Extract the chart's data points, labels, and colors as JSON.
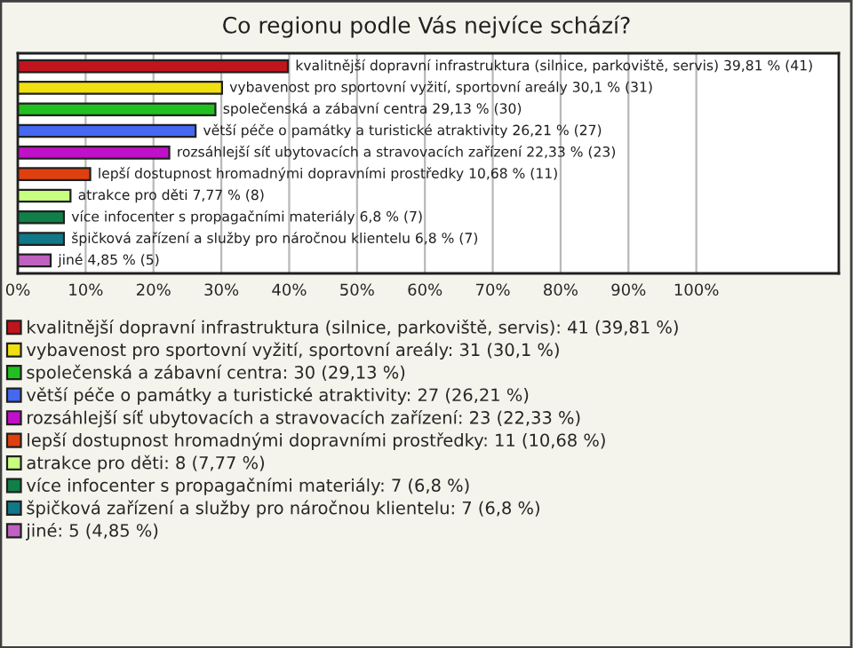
{
  "chart_data": {
    "type": "bar",
    "orientation": "horizontal",
    "title": "Co regionu podle Vás nejvíce schází?",
    "categories": [
      null,
      null,
      null,
      null,
      null,
      null,
      null,
      null,
      null,
      null
    ],
    "series": [
      {
        "name": "kvalitnější dopravní infrastruktura (silnice, parkoviště, servis): 41 (39,81 %)",
        "color": "#c0141e",
        "values": [
          39.81,
          null,
          null,
          null,
          null,
          null,
          null,
          null,
          null,
          null
        ],
        "value_labels": [
          "kvalitnější dopravní infrastruktura (silnice, parkoviště, servis) 39,81 % (41)",
          null,
          null,
          null,
          null,
          null,
          null,
          null,
          null,
          null
        ]
      },
      {
        "name": "vybavenost pro sportovní vyžití, sportovní areály: 31 (30,1 %)",
        "color": "#f0e010",
        "values": [
          null,
          30.1,
          null,
          null,
          null,
          null,
          null,
          null,
          null,
          null
        ],
        "value_labels": [
          null,
          "vybavenost pro sportovní vyžití, sportovní areály 30,1 % (31)",
          null,
          null,
          null,
          null,
          null,
          null,
          null,
          null
        ]
      },
      {
        "name": "společenská a zábavní centra: 30 (29,13 %)",
        "color": "#20c020",
        "values": [
          null,
          null,
          29.13,
          null,
          null,
          null,
          null,
          null,
          null,
          null
        ],
        "value_labels": [
          null,
          null,
          "společenská a zábavní centra 29,13 % (30)",
          null,
          null,
          null,
          null,
          null,
          null,
          null
        ]
      },
      {
        "name": "větší péče o památky a turistické atraktivity: 27 (26,21 %)",
        "color": "#4468f0",
        "values": [
          null,
          null,
          null,
          26.21,
          null,
          null,
          null,
          null,
          null,
          null
        ],
        "value_labels": [
          null,
          null,
          null,
          "větší péče o památky a turistické atraktivity 26,21 % (27)",
          null,
          null,
          null,
          null,
          null,
          null
        ]
      },
      {
        "name": "rozsáhlejší síť ubytovacích a stravovacích zařízení: 23 (22,33 %)",
        "color": "#c010c8",
        "values": [
          null,
          null,
          null,
          null,
          22.33,
          null,
          null,
          null,
          null,
          null
        ],
        "value_labels": [
          null,
          null,
          null,
          null,
          "rozsáhlejší síť ubytovacích a stravovacích zařízení 22,33 % (23)",
          null,
          null,
          null,
          null,
          null
        ]
      },
      {
        "name": "lepší dostupnost hromadnými dopravními prostředky: 11 (10,68 %)",
        "color": "#e04010",
        "values": [
          null,
          null,
          null,
          null,
          null,
          10.68,
          null,
          null,
          null,
          null
        ],
        "value_labels": [
          null,
          null,
          null,
          null,
          null,
          "lepší dostupnost hromadnými dopravními prostředky 10,68 % (11)",
          null,
          null,
          null,
          null
        ]
      },
      {
        "name": "atrakce pro děti: 8 (7,77 %)",
        "color": "#c8ff80",
        "values": [
          null,
          null,
          null,
          null,
          null,
          null,
          7.77,
          null,
          null,
          null
        ],
        "value_labels": [
          null,
          null,
          null,
          null,
          null,
          null,
          "atrakce pro děti 7,77 % (8)",
          null,
          null,
          null
        ]
      },
      {
        "name": "více infocenter s propagačními materiály: 7 (6,8 %)",
        "color": "#108048",
        "values": [
          null,
          null,
          null,
          null,
          null,
          null,
          null,
          6.8,
          null,
          null
        ],
        "value_labels": [
          null,
          null,
          null,
          null,
          null,
          null,
          null,
          "více infocenter s propagačními materiály 6,8 % (7)",
          null,
          null
        ]
      },
      {
        "name": "špičková zařízení a služby pro náročnou klientelu: 7 (6,8 %)",
        "color": "#107888",
        "values": [
          null,
          null,
          null,
          null,
          null,
          null,
          null,
          null,
          6.8,
          null
        ],
        "value_labels": [
          null,
          null,
          null,
          null,
          null,
          null,
          null,
          null,
          "špičková zařízení a služby pro náročnou klientelu 6,8 % (7)",
          null
        ]
      },
      {
        "name": "jiné: 5 (4,85 %)",
        "color": "#c060c0",
        "values": [
          null,
          null,
          null,
          null,
          null,
          null,
          null,
          null,
          null,
          4.85
        ],
        "value_labels": [
          null,
          null,
          null,
          null,
          null,
          null,
          null,
          null,
          null,
          "jiné 4,85 % (5)"
        ]
      }
    ],
    "xlim": [
      0,
      121
    ],
    "xticks": [
      {
        "value": 0,
        "label": "0%"
      },
      {
        "value": 10,
        "label": "10%"
      },
      {
        "value": 20,
        "label": "20%"
      },
      {
        "value": 30,
        "label": "30%"
      },
      {
        "value": 40,
        "label": "40%"
      },
      {
        "value": 50,
        "label": "50%"
      },
      {
        "value": 60,
        "label": "60%"
      },
      {
        "value": 70,
        "label": "70%"
      },
      {
        "value": 80,
        "label": "80%"
      },
      {
        "value": 90,
        "label": "90%"
      },
      {
        "value": 100,
        "label": "100%"
      }
    ],
    "grid": "x",
    "legend": "bottom",
    "tick_labels": "x"
  }
}
